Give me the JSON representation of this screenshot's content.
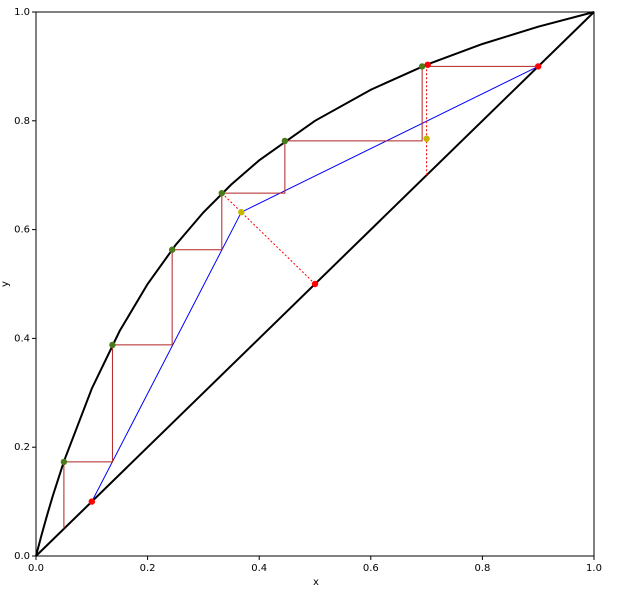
{
  "chart_data": {
    "type": "line",
    "xlabel": "x",
    "ylabel": "y",
    "xlim": [
      0,
      1
    ],
    "ylim": [
      0,
      1
    ],
    "xticks": [
      {
        "value": 0,
        "label": "0.0"
      },
      0.2,
      0.4,
      0.6,
      0.8,
      {
        "value": 1,
        "label": "1.0"
      }
    ],
    "yticks": [
      {
        "value": 0,
        "label": "0.0"
      },
      0.2,
      0.4,
      0.6,
      0.8,
      {
        "value": 1,
        "label": "1.0"
      }
    ],
    "series": [
      {
        "type": "line",
        "color": "#000000",
        "width": 2,
        "x": [
          0,
          0.01,
          0.02,
          0.03,
          0.05,
          0.1,
          0.15,
          0.2,
          0.25,
          0.3,
          0.35,
          0.4,
          0.5,
          0.6,
          0.7,
          0.8,
          0.9,
          1
        ],
        "values": [
          0,
          0.0388,
          0.0755,
          0.1101,
          0.1739,
          0.3077,
          0.4138,
          0.5,
          0.5714,
          0.6316,
          0.6829,
          0.7273,
          0.8,
          0.8571,
          0.9032,
          0.9412,
          0.973,
          1
        ]
      },
      {
        "type": "line",
        "color": "#000000",
        "width": 2,
        "x": [
          0,
          1
        ],
        "values": [
          0,
          1
        ]
      },
      {
        "type": "line",
        "color": "#0000ff",
        "width": 1,
        "x": [
          0.1,
          0.368,
          0.9
        ],
        "values": [
          0.1,
          0.632,
          0.9
        ]
      },
      {
        "type": "line",
        "color": "#b22222",
        "width": 1,
        "x": [
          0.9,
          0.692,
          0.692,
          0.446,
          0.446,
          0.333,
          0.333,
          0.244,
          0.244,
          0.137,
          0.137,
          0.05,
          0.05
        ],
        "values": [
          0.9,
          0.9,
          0.763,
          0.763,
          0.667,
          0.667,
          0.563,
          0.563,
          0.388,
          0.388,
          0.173,
          0.173,
          0.05
        ]
      },
      {
        "type": "line",
        "color": "#ff0000",
        "width": 1,
        "dash": true,
        "x": [
          0.5,
          0.333
        ],
        "values": [
          0.5,
          0.667
        ]
      },
      {
        "type": "line",
        "color": "#ff0000",
        "width": 1,
        "dash": true,
        "x": [
          0.7,
          0.7
        ],
        "values": [
          0.7,
          0.903
        ]
      },
      {
        "type": "scatter",
        "color": "#4a7a1a",
        "x": [
          0.692,
          0.446,
          0.333,
          0.244,
          0.137,
          0.05
        ],
        "values": [
          0.9,
          0.763,
          0.667,
          0.563,
          0.388,
          0.173
        ]
      },
      {
        "type": "scatter",
        "color": "#ff0000",
        "x": [
          0.9,
          0.1,
          0.5,
          0.702
        ],
        "values": [
          0.9,
          0.1,
          0.5,
          0.903
        ]
      },
      {
        "type": "scatter",
        "color": "#c8b400",
        "x": [
          0.7,
          0.368
        ],
        "values": [
          0.767,
          0.632
        ]
      }
    ]
  }
}
